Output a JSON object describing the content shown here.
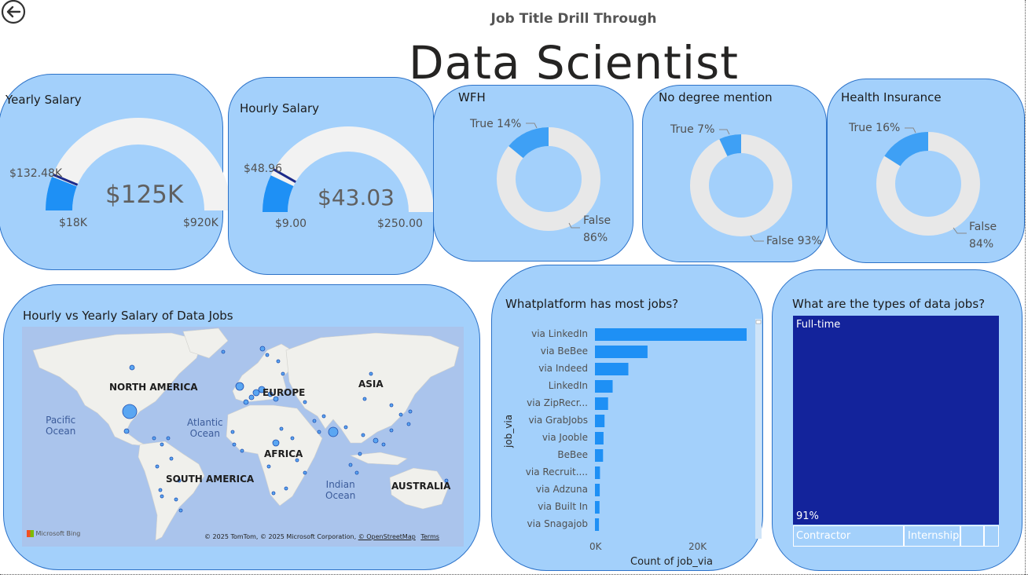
{
  "header": {
    "subtitle": "Job Title Drill Through",
    "title": "Data Scientist",
    "back_icon": "back-arrow-icon"
  },
  "colors": {
    "card_bg": "#a3d0fb",
    "card_border": "#2c72c8",
    "accent": "#1e90f5",
    "donut_highlight": "#3ea0f5",
    "donut_rest": "#e8e8e8",
    "treemap": "#13239b"
  },
  "yearly_salary": {
    "title": "Yearly Salary",
    "value": "$125K",
    "min": "$18K",
    "max": "$920K",
    "target": "$132.48K",
    "value_num": 125,
    "min_num": 18,
    "max_num": 920,
    "target_num": 132.48
  },
  "hourly_salary": {
    "title": "Hourly Salary",
    "value": "$43.03",
    "min": "$9.00",
    "max": "$250.00",
    "target": "$48.96",
    "value_num": 43.03,
    "min_num": 9,
    "max_num": 250,
    "target_num": 48.96
  },
  "donuts": {
    "wfh": {
      "title": "WFH",
      "true_label": "True 14%",
      "false_label_1": "False",
      "false_label_2": "86%",
      "true_pct": 14
    },
    "no_degree": {
      "title": "No degree mention",
      "true_label": "True 7%",
      "false_label": "False 93%",
      "true_pct": 7
    },
    "health": {
      "title": "Health Insurance",
      "true_label": "True 16%",
      "false_label_1": "False",
      "false_label_2": "84%",
      "true_pct": 16
    }
  },
  "map": {
    "title": "Hourly vs Yearly Salary of Data Jobs",
    "continents": {
      "north_america": "NORTH AMERICA",
      "europe": "EUROPE",
      "asia": "ASIA",
      "africa": "AFRICA",
      "south_america": "SOUTH AMERICA",
      "australia": "AUSTRALIA"
    },
    "oceans": {
      "pacific_1": "Pacific",
      "pacific_2": "Ocean",
      "atlantic_1": "Atlantic",
      "atlantic_2": "Ocean",
      "indian_1": "Indian",
      "indian_2": "Ocean"
    },
    "logo": "Microsoft Bing",
    "copyright": "© 2025 TomTom, © 2025 Microsoft Corporation,",
    "osm": "© OpenStreetMap",
    "terms": "Terms"
  },
  "platforms": {
    "title": "Whatplatform has most jobs?",
    "y_axis_label": "job_via",
    "x_axis_label": "Count of job_via",
    "ticks": [
      "0K",
      "20K"
    ]
  },
  "chart_data": {
    "type": "bar",
    "orientation": "horizontal",
    "categories": [
      "via LinkedIn",
      "via BeBee",
      "via Indeed",
      "LinkedIn",
      "via ZipRecr...",
      "via GrabJobs",
      "via Jooble",
      "BeBee",
      "via Recruit....",
      "via Adzuna",
      "via Built In",
      "via Snagajob"
    ],
    "values": [
      30000,
      10400,
      6600,
      3500,
      2600,
      1900,
      1700,
      1600,
      1000,
      950,
      900,
      800
    ],
    "xlabel": "Count of job_via",
    "ylabel": "job_via",
    "xlim": [
      0,
      30000
    ]
  },
  "job_types": {
    "title": "What are the types of data jobs?",
    "main_label": "Full-time",
    "main_pct": "91%",
    "small_1": "Contractor",
    "small_2": "Internship"
  }
}
